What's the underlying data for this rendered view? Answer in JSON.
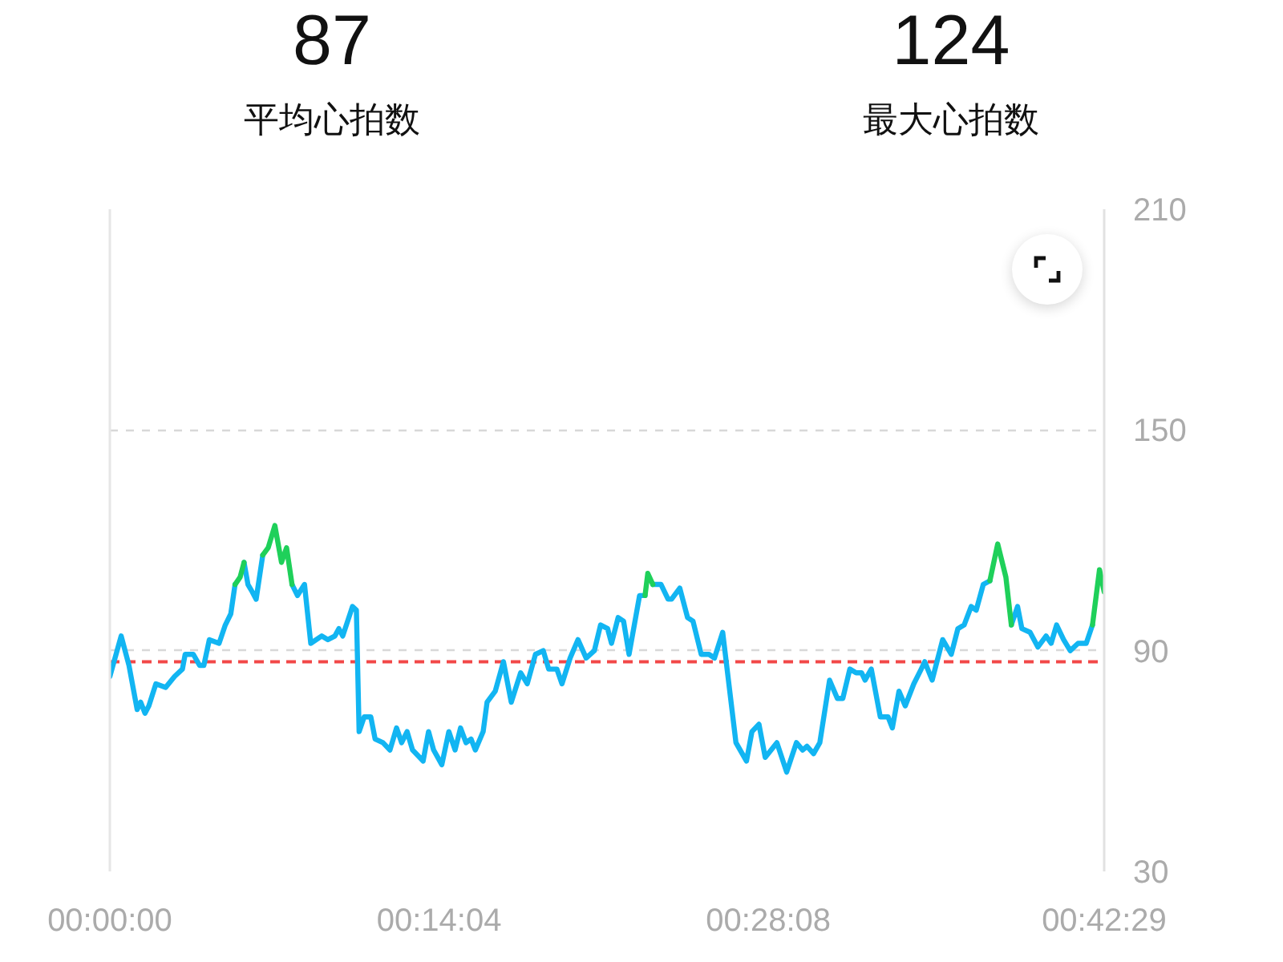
{
  "chart_data": {
    "type": "line",
    "annotations": [
      "87",
      "平均心拍数",
      "124",
      "最大心拍数"
    ],
    "x": [
      0,
      29,
      49,
      70,
      79,
      90,
      100,
      118,
      143,
      166,
      186,
      193,
      214,
      230,
      241,
      255,
      280,
      296,
      310,
      321,
      334,
      344,
      354,
      365,
      375,
      392,
      406,
      423,
      440,
      453,
      467,
      481,
      499,
      515,
      543,
      559,
      577,
      587,
      597,
      622,
      632,
      639,
      652,
      669,
      680,
      700,
      718,
      735,
      748,
      762,
      776,
      803,
      817,
      830,
      851,
      869,
      885,
      899,
      913,
      926,
      937,
      957,
      967,
      988,
      1009,
      1029,
      1053,
      1070,
      1091,
      1111,
      1125,
      1146,
      1159,
      1180,
      1200,
      1221,
      1242,
      1258,
      1276,
      1286,
      1303,
      1317,
      1331,
      1358,
      1372,
      1379,
      1392,
      1413,
      1431,
      1440,
      1461,
      1481,
      1495,
      1516,
      1536,
      1550,
      1571,
      1605,
      1632,
      1646,
      1664,
      1680,
      1710,
      1735,
      1760,
      1776,
      1787,
      1804,
      1820,
      1845,
      1865,
      1879,
      1897,
      1913,
      1927,
      1936,
      1952,
      1975,
      1995,
      2006,
      2023,
      2039,
      2061,
      2080,
      2089,
      2108,
      2135,
      2157,
      2174,
      2190,
      2208,
      2221,
      2239,
      2256,
      2276,
      2297,
      2311,
      2327,
      2338,
      2359,
      2379,
      2400,
      2413,
      2427,
      2445,
      2462,
      2482,
      2503,
      2519,
      2537,
      2549
    ],
    "series": [
      {
        "color": "#12b5f2",
        "values": [
          83,
          94,
          86,
          74,
          76,
          73,
          75,
          81,
          80,
          83,
          85,
          89,
          89,
          86,
          86,
          93,
          92,
          97,
          100,
          108,
          null,
          114,
          108,
          106,
          104,
          116,
          null,
          null,
          null,
          null,
          108,
          105,
          108,
          92,
          94,
          93,
          94,
          96,
          94,
          102,
          101,
          68,
          72,
          72,
          66,
          65,
          63,
          69,
          65,
          68,
          63,
          60,
          68,
          63,
          59,
          68,
          63,
          69,
          65,
          66,
          63,
          68,
          76,
          79,
          87,
          76,
          84,
          81,
          89,
          90,
          85,
          85,
          81,
          88,
          93,
          88,
          90,
          97,
          96,
          92,
          99,
          98,
          89,
          105,
          105,
          null,
          108,
          108,
          104,
          104,
          107,
          99,
          98,
          89,
          89,
          88,
          95,
          65,
          60,
          68,
          70,
          61,
          65,
          57,
          65,
          63,
          64,
          62,
          65,
          82,
          77,
          77,
          85,
          84,
          84,
          82,
          85,
          72,
          72,
          69,
          79,
          75,
          81,
          85,
          87,
          82,
          93,
          89,
          96,
          97,
          102,
          101,
          108,
          109,
          null,
          null,
          97,
          102,
          96,
          95,
          91,
          94,
          92,
          97,
          93,
          90,
          92,
          92,
          97,
          null,
          null
        ]
      },
      {
        "color": "#1fd05a",
        "values": [
          null,
          null,
          null,
          null,
          null,
          null,
          null,
          null,
          null,
          null,
          null,
          null,
          null,
          null,
          null,
          null,
          null,
          null,
          null,
          108,
          110,
          114,
          null,
          null,
          null,
          116,
          118,
          124,
          114,
          118,
          108,
          null,
          null,
          null,
          null,
          null,
          null,
          null,
          null,
          null,
          null,
          null,
          null,
          null,
          null,
          null,
          null,
          null,
          null,
          null,
          null,
          null,
          null,
          null,
          null,
          null,
          null,
          null,
          null,
          null,
          null,
          null,
          null,
          null,
          null,
          null,
          null,
          null,
          null,
          null,
          null,
          null,
          null,
          null,
          null,
          null,
          null,
          null,
          null,
          null,
          null,
          null,
          null,
          null,
          105,
          111,
          108,
          null,
          null,
          null,
          null,
          null,
          null,
          null,
          null,
          null,
          null,
          null,
          null,
          null,
          null,
          null,
          null,
          null,
          null,
          null,
          null,
          null,
          null,
          null,
          null,
          null,
          null,
          null,
          null,
          null,
          null,
          null,
          null,
          null,
          null,
          null,
          null,
          null,
          null,
          null,
          null,
          null,
          null,
          null,
          null,
          null,
          null,
          109,
          119,
          110,
          97,
          null,
          null,
          null,
          null,
          null,
          null,
          null,
          null,
          null,
          null,
          null,
          97,
          112,
          106
        ]
      }
    ],
    "xlim": [
      0,
      2549
    ],
    "xticks": [
      {
        "value": 0,
        "label": "00:00:00"
      },
      {
        "value": 844,
        "label": "00:14:04"
      },
      {
        "value": 1688,
        "label": "00:28:08"
      },
      {
        "value": 2549,
        "label": "00:42:29"
      }
    ],
    "ylim": [
      30,
      210
    ],
    "yticks": [
      30,
      90,
      150,
      210
    ],
    "grid": "y",
    "ref_lines": [
      {
        "axis": "y",
        "value": 87,
        "color": "#f24848",
        "line_style": "dashed"
      }
    ]
  }
}
